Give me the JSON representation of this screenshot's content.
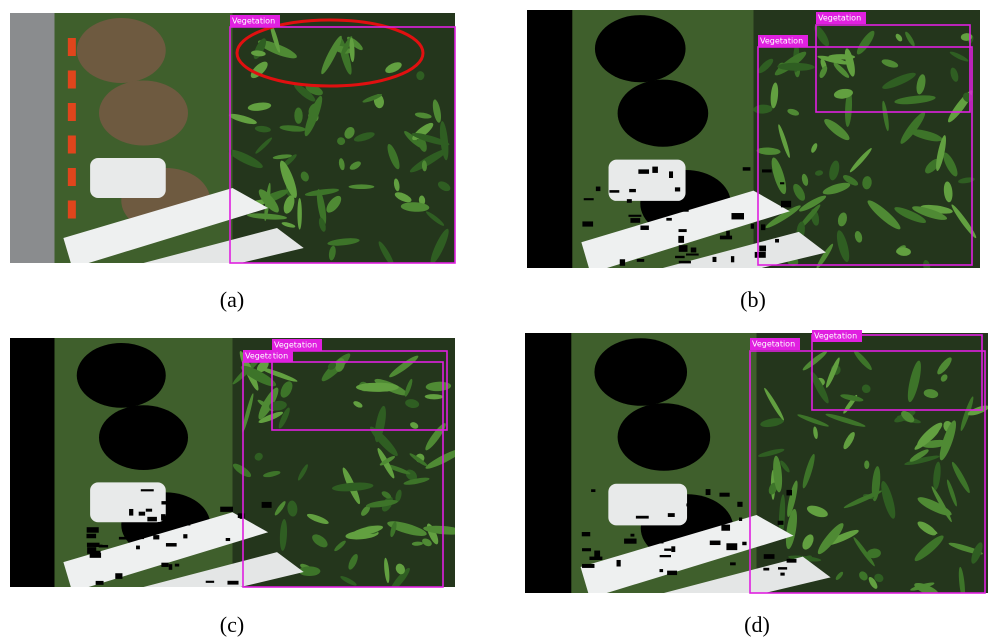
{
  "panels": [
    {
      "caption": "(a)",
      "boxes": [
        {
          "label": "Vegetation"
        }
      ]
    },
    {
      "caption": "(b)",
      "boxes": [
        {
          "label": "Vegetation"
        },
        {
          "label": "Vegetation"
        }
      ]
    },
    {
      "caption": "(c)",
      "boxes": [
        {
          "label": "Vegetation"
        },
        {
          "label": "Vegetation"
        }
      ]
    },
    {
      "caption": "(d)",
      "boxes": [
        {
          "label": "Vegetation"
        },
        {
          "label": "Vegetation"
        }
      ]
    }
  ]
}
